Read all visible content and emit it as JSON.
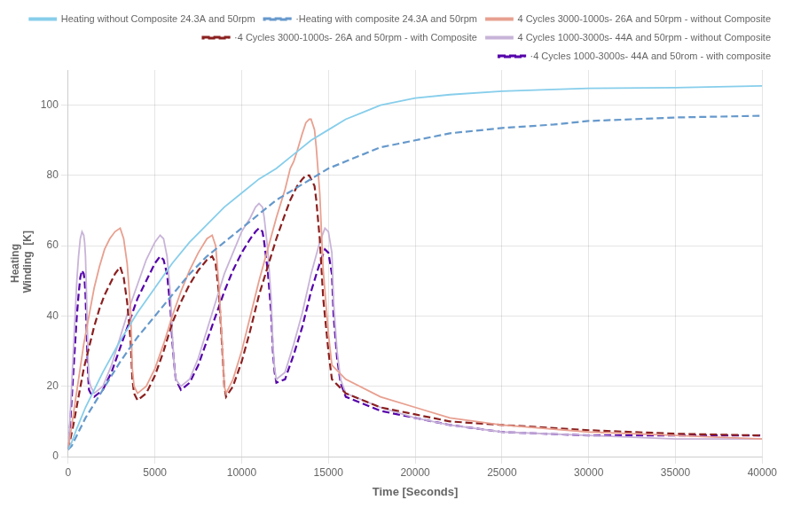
{
  "chart_data": {
    "type": "line",
    "xlabel": "Time [Seconds]",
    "ylabel": [
      "Heating",
      " Winding  [K]"
    ],
    "xlim": [
      0,
      40000
    ],
    "ylim": [
      0,
      110
    ],
    "xticks": [
      0,
      5000,
      10000,
      15000,
      20000,
      25000,
      30000,
      35000,
      40000
    ],
    "yticks": [
      0,
      20,
      40,
      60,
      80,
      100
    ],
    "grid": true,
    "legend": "upper right",
    "series": [
      {
        "name": "Heating without Composite 24.3A and 50rpm",
        "color": "#87CEEB",
        "line_style": "solid",
        "x": [
          0,
          200,
          500,
          1000,
          2000,
          3000,
          4000,
          5000,
          6000,
          7000,
          8000,
          9000,
          10000,
          11000,
          12000,
          13000,
          14000,
          15000,
          16000,
          17000,
          18000,
          19000,
          20000,
          22000,
          25000,
          28000,
          30000,
          35000,
          40000
        ],
        "values": [
          2,
          4,
          8,
          14,
          24,
          33,
          41,
          48,
          55,
          61,
          66,
          71,
          75,
          79,
          82,
          86,
          90,
          93,
          96,
          98,
          100,
          101,
          102,
          103,
          104,
          104.5,
          104.8,
          105,
          105.5
        ]
      },
      {
        "name": "·Heating with composite 24.3A and 50rpm",
        "color": "#6699CC",
        "line_style": "dashed",
        "x": [
          0,
          200,
          500,
          1000,
          2000,
          3000,
          4000,
          5000,
          6000,
          7000,
          8000,
          9000,
          10000,
          11000,
          12000,
          13000,
          14000,
          15000,
          16000,
          17000,
          18000,
          19000,
          20000,
          22000,
          25000,
          28000,
          30000,
          35000,
          40000
        ],
        "values": [
          2,
          3,
          6,
          11,
          19,
          27,
          34,
          40,
          46,
          52,
          57,
          61,
          65,
          69,
          73,
          76,
          79,
          82,
          84,
          86,
          88,
          89,
          90,
          92,
          93.5,
          94.5,
          95.5,
          96.5,
          97
        ]
      },
      {
        "name": "4 Cycles 3000-1000s- 26A and 50rpm - without Composite",
        "color": "#E8A090",
        "line_style": "solid",
        "x": [
          0,
          300,
          600,
          900,
          1200,
          1500,
          1800,
          2100,
          2400,
          2700,
          3000,
          3200,
          3400,
          3600,
          3700,
          3800,
          4000,
          4500,
          5000,
          5500,
          6000,
          6500,
          7000,
          7500,
          8000,
          8300,
          8500,
          8700,
          8900,
          9000,
          9100,
          9500,
          10000,
          10500,
          11000,
          11500,
          12000,
          12500,
          12800,
          13000,
          13200,
          13500,
          13700,
          13900,
          14000,
          14200,
          14300,
          14500,
          14700,
          15000,
          15200,
          16000,
          18000,
          20000,
          22000,
          25000,
          30000,
          35000,
          40000
        ],
        "values": [
          2,
          12,
          22,
          32,
          40,
          48,
          54,
          59,
          62,
          64,
          65,
          62,
          55,
          42,
          25,
          20,
          18,
          20,
          25,
          32,
          40,
          47,
          53,
          58,
          62,
          63,
          60,
          48,
          30,
          20,
          18,
          22,
          30,
          40,
          50,
          59,
          68,
          76,
          82,
          84,
          87,
          92,
          95,
          96,
          96,
          93,
          88,
          75,
          53,
          35,
          26,
          22,
          17,
          14,
          11,
          9,
          7,
          6,
          5
        ]
      },
      {
        "name": "·4 Cycles 3000-1000s- 26A and 50rpm - with Composite",
        "color": "#8B2020",
        "line_style": "dashed",
        "x": [
          0,
          300,
          600,
          900,
          1200,
          1500,
          1800,
          2100,
          2400,
          2700,
          3000,
          3200,
          3400,
          3600,
          3700,
          3800,
          4000,
          4500,
          5000,
          5500,
          6000,
          6500,
          7000,
          7500,
          8000,
          8300,
          8500,
          8700,
          8900,
          9000,
          9100,
          9500,
          10000,
          10500,
          11000,
          11500,
          12000,
          12500,
          12800,
          13000,
          13200,
          13500,
          13700,
          13900,
          14000,
          14200,
          14300,
          14500,
          14700,
          15000,
          15200,
          16000,
          18000,
          20000,
          22000,
          25000,
          30000,
          35000,
          40000
        ],
        "values": [
          2,
          9,
          17,
          25,
          31,
          37,
          42,
          46,
          49,
          52,
          54,
          51,
          44,
          33,
          22,
          18,
          16,
          18,
          23,
          30,
          38,
          44,
          49,
          53,
          56,
          57,
          55,
          46,
          29,
          20,
          17,
          20,
          27,
          36,
          46,
          54,
          62,
          69,
          73,
          75,
          77,
          79,
          80,
          80,
          79,
          77,
          73,
          62,
          45,
          30,
          22,
          18,
          14,
          12,
          10,
          9,
          7.5,
          6.5,
          6
        ]
      },
      {
        "name": "4 Cycles 1000-3000s- 44A and 50rpm - without Composite",
        "color": "#C8B4D8",
        "line_style": "solid",
        "x": [
          0,
          100,
          200,
          300,
          400,
          500,
          600,
          700,
          800,
          900,
          950,
          1000,
          1050,
          1100,
          1150,
          1200,
          1300,
          1500,
          2000,
          2500,
          3000,
          3500,
          4000,
          4500,
          5000,
          5300,
          5500,
          5700,
          5900,
          6000,
          6100,
          6200,
          6500,
          7000,
          7500,
          8000,
          8500,
          9000,
          9500,
          10000,
          10500,
          10800,
          11000,
          11200,
          11300,
          11500,
          11700,
          11800,
          11900,
          12000,
          12500,
          13000,
          13500,
          14000,
          14500,
          14800,
          15000,
          15200,
          15300,
          15500,
          15700,
          16000,
          18000,
          20000,
          22000,
          25000,
          30000,
          35000,
          40000
        ],
        "values": [
          2,
          10,
          20,
          30,
          40,
          50,
          57,
          62,
          64,
          63,
          61,
          57,
          48,
          38,
          28,
          22,
          20,
          18,
          20,
          26,
          34,
          42,
          49,
          56,
          61,
          63,
          62,
          57,
          46,
          35,
          27,
          22,
          20,
          22,
          28,
          36,
          44,
          52,
          58,
          64,
          68,
          71,
          72,
          71,
          68,
          59,
          45,
          32,
          25,
          22,
          24,
          32,
          41,
          52,
          61,
          65,
          64,
          58,
          44,
          30,
          22,
          18,
          14,
          11,
          9,
          7,
          6,
          5,
          5
        ]
      },
      {
        "name": "·4 Cycles 1000-3000s- 44A and 50rom - with composite",
        "color": "#5500AA",
        "line_style": "dashed",
        "x": [
          0,
          100,
          200,
          300,
          400,
          500,
          600,
          700,
          800,
          900,
          950,
          1000,
          1050,
          1100,
          1150,
          1200,
          1300,
          1500,
          2000,
          2500,
          3000,
          3500,
          4000,
          4500,
          5000,
          5300,
          5500,
          5700,
          5900,
          6000,
          6100,
          6200,
          6500,
          7000,
          7500,
          8000,
          8500,
          9000,
          9500,
          10000,
          10500,
          10800,
          11000,
          11200,
          11300,
          11500,
          11700,
          11800,
          11900,
          12000,
          12500,
          13000,
          13500,
          14000,
          14500,
          14800,
          15000,
          15200,
          15300,
          15500,
          15700,
          16000,
          18000,
          20000,
          22000,
          25000,
          30000,
          35000,
          40000
        ],
        "values": [
          2,
          8,
          16,
          24,
          32,
          40,
          46,
          51,
          53,
          52,
          50,
          46,
          38,
          30,
          23,
          19,
          18,
          17,
          19,
          24,
          31,
          38,
          45,
          50,
          55,
          57,
          56,
          52,
          42,
          33,
          27,
          22,
          19,
          21,
          26,
          33,
          40,
          47,
          53,
          58,
          62,
          64,
          65,
          64,
          61,
          53,
          41,
          30,
          24,
          21,
          22,
          29,
          37,
          47,
          55,
          59,
          58,
          52,
          40,
          28,
          21,
          17,
          13,
          11,
          9,
          7,
          6,
          6,
          6
        ]
      }
    ]
  }
}
